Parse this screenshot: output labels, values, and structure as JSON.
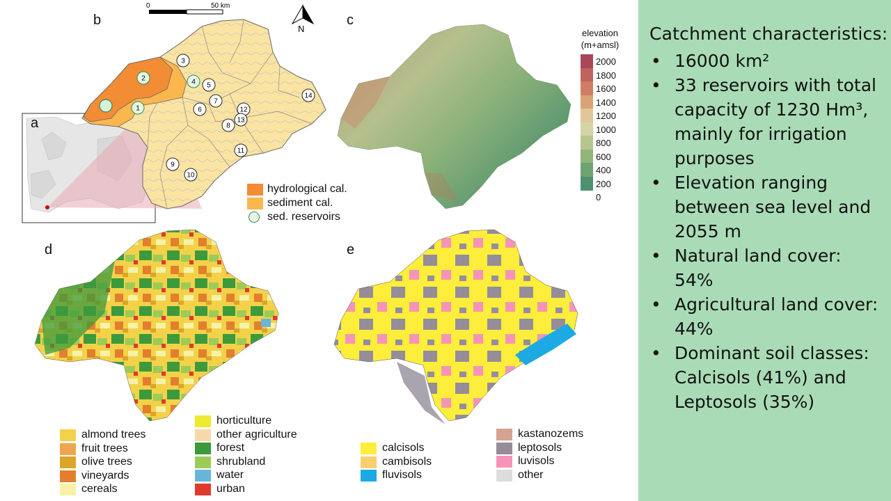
{
  "panels": {
    "a": "a",
    "b": "b",
    "c": "c",
    "d": "d",
    "e": "e"
  },
  "scalebar": {
    "start": "0",
    "end": "50 km"
  },
  "north": "N",
  "reservoirs": [
    "1",
    "2",
    "3",
    "4",
    "5",
    "6",
    "7",
    "8",
    "9",
    "10",
    "11",
    "12",
    "13",
    "14"
  ],
  "calibration_legend": [
    {
      "label": "hydrological cal.",
      "color": "#f28c35"
    },
    {
      "label": "sediment cal.",
      "color": "#fbb64d"
    },
    {
      "label": "sed. reservoirs",
      "color": "#2e8b57"
    }
  ],
  "elevation_legend": {
    "title_line1": "elevation",
    "title_line2": "(m+amsl)",
    "ticks": [
      "2000",
      "1800",
      "1600",
      "1400",
      "1200",
      "1000",
      "800",
      "600",
      "400",
      "200",
      "0"
    ],
    "colors": [
      "#a8475a",
      "#c0625e",
      "#cf7e63",
      "#d9a375",
      "#e0c79a",
      "#d6d4a6",
      "#b6c58e",
      "#93b57a",
      "#6fa271",
      "#4f9070"
    ]
  },
  "landuse_legend": [
    {
      "label": "almond trees",
      "color": "#f3d24a"
    },
    {
      "label": "fruit trees",
      "color": "#eea64e"
    },
    {
      "label": "olive trees",
      "color": "#dba52a"
    },
    {
      "label": "vineyards",
      "color": "#e37f2c"
    },
    {
      "label": "cereals",
      "color": "#f7f2a8"
    },
    {
      "label": "horticulture",
      "color": "#eeea2f"
    },
    {
      "label": "other agriculture",
      "color": "#f5d9a8"
    },
    {
      "label": "forest",
      "color": "#3c9a3c"
    },
    {
      "label": "shrubland",
      "color": "#9ccc55"
    },
    {
      "label": "water",
      "color": "#69b5d8"
    },
    {
      "label": "urban",
      "color": "#e03a2e"
    }
  ],
  "soil_legend": [
    {
      "label": "calcisols",
      "color": "#fcee3a"
    },
    {
      "label": "cambisols",
      "color": "#f9ce6e"
    },
    {
      "label": "fluvisols",
      "color": "#1da9e4"
    },
    {
      "label": "kastanozems",
      "color": "#d6a392"
    },
    {
      "label": "leptosols",
      "color": "#958d9a"
    },
    {
      "label": "luvisols",
      "color": "#f594b8"
    },
    {
      "label": "other",
      "color": "#dddddd"
    }
  ],
  "info": {
    "title": "Catchment characteristics:",
    "bullet": "•",
    "items": [
      "16000 km²",
      "33 reservoirs with total capacity of 1230 Hm³, mainly for irrigation purposes",
      "Elevation ranging between sea level and 2055 m",
      "Natural land cover: 54%",
      "Agricultural land cover: 44%",
      "Dominant soil classes: Calcisols (41%) and Leptosols (35%)"
    ]
  },
  "colors": {
    "info_bg": "#a9dcb6",
    "catchment_fill": "#fbe3a2",
    "inset_fill": "#f0c9cf"
  }
}
